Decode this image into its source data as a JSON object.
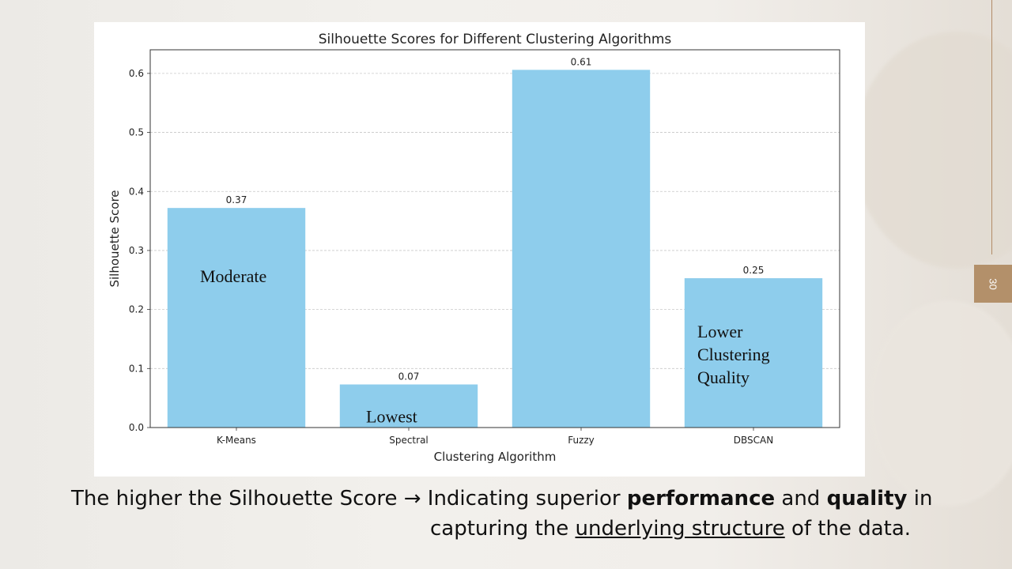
{
  "chart_data": {
    "type": "bar",
    "title": "Silhouette Scores for Different Clustering Algorithms",
    "xlabel": "Clustering Algorithm",
    "ylabel": "Silhouette Score",
    "categories": [
      "K-Means",
      "Spectral",
      "Fuzzy",
      "DBSCAN"
    ],
    "values": [
      0.372,
      0.073,
      0.606,
      0.253
    ],
    "data_labels": [
      "0.37",
      "0.07",
      "0.61",
      "0.25"
    ],
    "ylim": [
      0,
      0.64
    ],
    "yticks": [
      0.0,
      0.1,
      0.2,
      0.3,
      0.4,
      0.5,
      0.6
    ],
    "ytick_labels": [
      "0.0",
      "0.1",
      "0.2",
      "0.3",
      "0.4",
      "0.5",
      "0.6"
    ],
    "grid": "horizontal dashed",
    "bar_color": "#8ecdec",
    "annotations": [
      {
        "category": "K-Means",
        "lines": [
          "Moderate"
        ]
      },
      {
        "category": "Spectral",
        "lines": [
          "Lowest"
        ]
      },
      {
        "category": "DBSCAN",
        "lines": [
          "Lower",
          "Clustering",
          "Quality"
        ]
      }
    ]
  },
  "slide": {
    "page_number": "30",
    "accent_color": "#b3906a",
    "caption": {
      "part1": "The higher the Silhouette Score → Indicating superior ",
      "bold1": "performance",
      "part2": " and ",
      "bold2": "quality",
      "part3": " in",
      "part4": "capturing the ",
      "underlined": "underlying structure",
      "part5": " of the data."
    }
  }
}
